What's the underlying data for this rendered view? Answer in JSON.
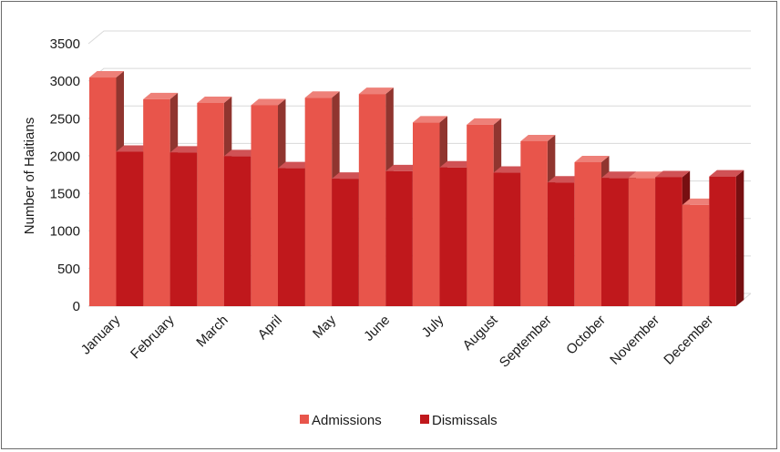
{
  "chart_data": {
    "type": "bar",
    "title": "",
    "xlabel": "",
    "ylabel": "Number of Haitians",
    "ylim": [
      0,
      3500
    ],
    "yticks": [
      0,
      500,
      1000,
      1500,
      2000,
      2500,
      3000,
      3500
    ],
    "categories": [
      "January",
      "February",
      "March",
      "April",
      "May",
      "June",
      "July",
      "August",
      "September",
      "October",
      "November",
      "December"
    ],
    "series": [
      {
        "name": "Admissions",
        "color": "#e8554b",
        "values": [
          3050,
          2760,
          2710,
          2680,
          2780,
          2830,
          2450,
          2420,
          2200,
          1920,
          1710,
          1350
        ]
      },
      {
        "name": "Dismissals",
        "color": "#c0181c",
        "values": [
          2060,
          2050,
          2000,
          1840,
          1700,
          1800,
          1850,
          1780,
          1650,
          1710,
          1720,
          1730
        ]
      }
    ],
    "grid": true,
    "legend_position": "bottom",
    "style": "3d"
  }
}
